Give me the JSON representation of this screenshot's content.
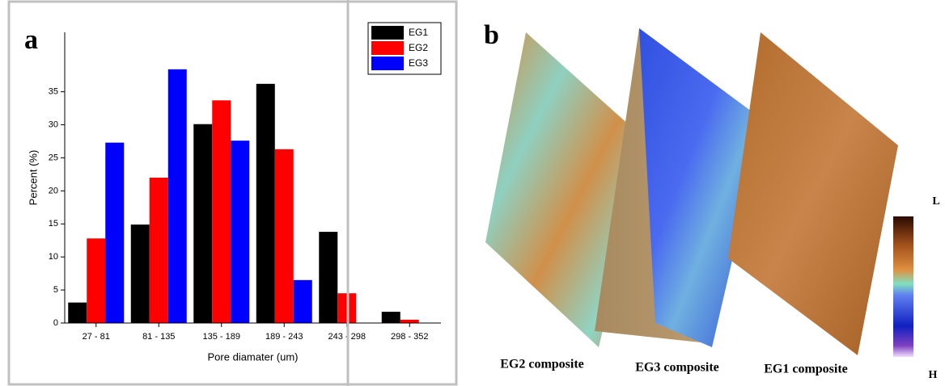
{
  "chart_data": {
    "type": "bar",
    "panel_label": "a",
    "x_label": "Pore diamater (um)",
    "y_label": "Percent (%)",
    "categories": [
      "27 - 81",
      "81 - 135",
      "135 - 189",
      "189 - 243",
      "243 - 298",
      "298 - 352"
    ],
    "series": [
      {
        "name": "EG1",
        "color": "#000000",
        "values": [
          3.1,
          14.9,
          30.1,
          36.2,
          13.8,
          1.7
        ]
      },
      {
        "name": "EG2",
        "color": "#ff0000",
        "values": [
          12.8,
          22.0,
          33.7,
          26.3,
          4.5,
          0.5
        ]
      },
      {
        "name": "EG3",
        "color": "#0000ff",
        "values": [
          27.3,
          38.4,
          27.6,
          6.5,
          0,
          0
        ]
      }
    ],
    "ylim": [
      0,
      44
    ],
    "yticks": [
      0,
      5,
      10,
      15,
      20,
      25,
      30,
      35
    ],
    "legend": "top-right"
  },
  "panel_b": {
    "label": "b",
    "captions": [
      "EG2 composite",
      "EG3 composite",
      "EG1 composite"
    ],
    "scale_top": "L",
    "scale_bottom": "H"
  }
}
